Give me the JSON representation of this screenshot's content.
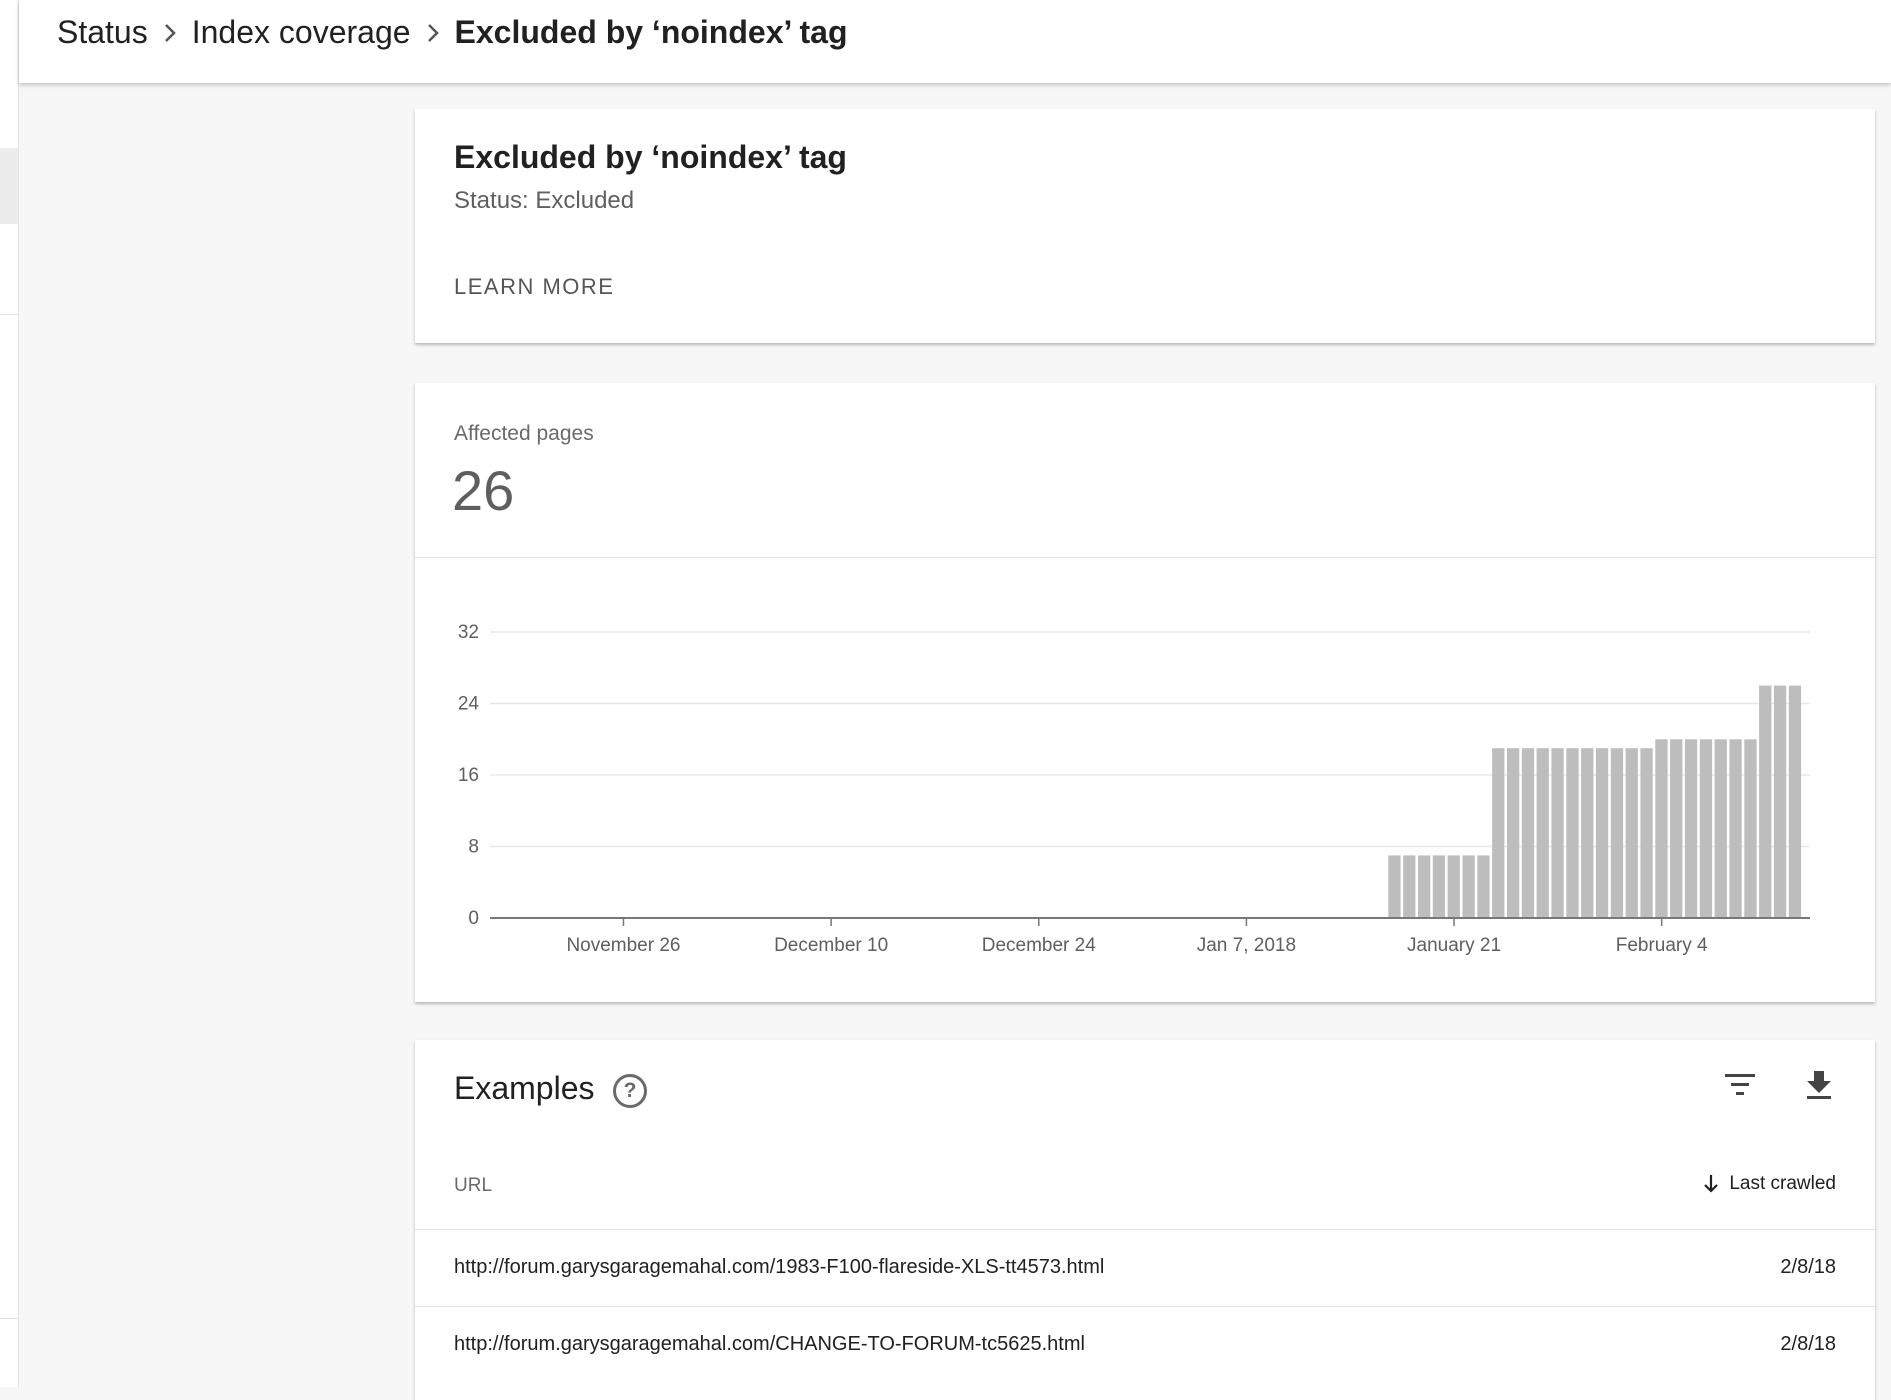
{
  "breadcrumb": {
    "items": [
      "Status",
      "Index coverage"
    ],
    "current": "Excluded by ‘noindex’ tag",
    "separator_icon": "chevron-right-icon"
  },
  "summary_card": {
    "title": "Excluded by ‘noindex’ tag",
    "status": "Status: Excluded",
    "learn_more": "LEARN MORE"
  },
  "affected": {
    "label": "Affected pages",
    "value": "26"
  },
  "chart_data": {
    "type": "bar",
    "title": "",
    "xlabel": "",
    "ylabel": "",
    "ylim": [
      0,
      32
    ],
    "yticks": [
      0,
      8,
      16,
      24,
      32
    ],
    "grid": true,
    "bar_color": "#bdbdbd",
    "x_range": [
      "2017-11-17",
      "2018-02-14"
    ],
    "xticks": [
      {
        "date": "2017-11-26",
        "label": "November 26"
      },
      {
        "date": "2017-12-10",
        "label": "December 10"
      },
      {
        "date": "2017-12-24",
        "label": "December 24"
      },
      {
        "date": "2018-01-07",
        "label": "Jan 7, 2018"
      },
      {
        "date": "2018-01-21",
        "label": "January 21"
      },
      {
        "date": "2018-02-04",
        "label": "February 4"
      }
    ],
    "x": [
      "2018-01-17",
      "2018-01-18",
      "2018-01-19",
      "2018-01-20",
      "2018-01-21",
      "2018-01-22",
      "2018-01-23",
      "2018-01-24",
      "2018-01-25",
      "2018-01-26",
      "2018-01-27",
      "2018-01-28",
      "2018-01-29",
      "2018-01-30",
      "2018-01-31",
      "2018-02-01",
      "2018-02-02",
      "2018-02-03",
      "2018-02-04",
      "2018-02-05",
      "2018-02-06",
      "2018-02-07",
      "2018-02-08",
      "2018-02-09",
      "2018-02-10",
      "2018-02-11",
      "2018-02-12",
      "2018-02-13"
    ],
    "values": [
      7,
      7,
      7,
      7,
      7,
      7,
      7,
      19,
      19,
      19,
      19,
      19,
      19,
      19,
      19,
      19,
      19,
      19,
      20,
      20,
      20,
      20,
      20,
      20,
      20,
      26,
      26,
      26
    ]
  },
  "examples": {
    "title": "Examples",
    "help_icon": "help-circle-icon",
    "filter_icon": "filter-icon",
    "download_icon": "download-icon",
    "col_url": "URL",
    "col_last": "Last crawled",
    "sort_icon": "arrow-down-icon",
    "rows": [
      {
        "url": "http://forum.garysgaragemahal.com/1983-F100-flareside-XLS-tt4573.html",
        "date": "2/8/18"
      },
      {
        "url": "http://forum.garysgaragemahal.com/CHANGE-TO-FORUM-tc5625.html",
        "date": "2/8/18"
      }
    ]
  }
}
